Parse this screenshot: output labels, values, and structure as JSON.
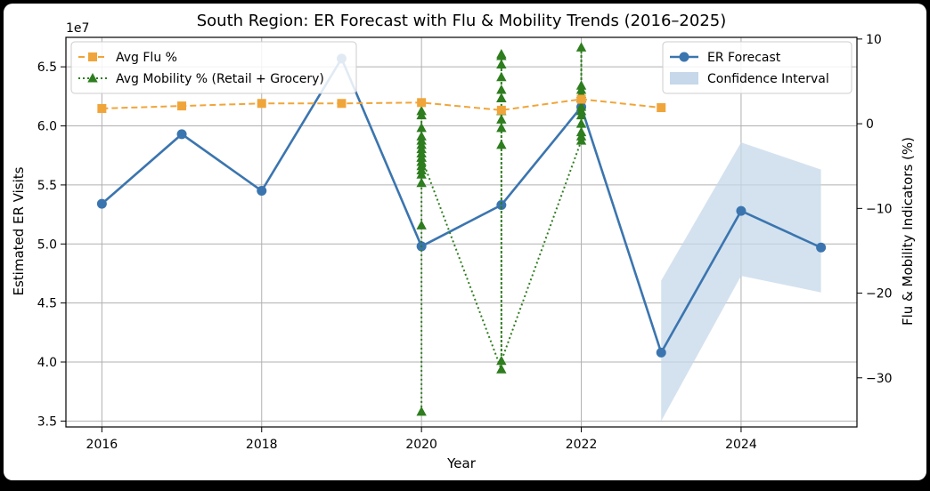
{
  "chart_data": {
    "type": "line",
    "title": "South Region: ER Forecast with Flu & Mobility Trends (2016–2025)",
    "xlabel": "Year",
    "ylabel": "Estimated ER Visits",
    "ylabel_right": "Flu & Mobility Indicators (%)",
    "offset_text": "1e7",
    "xlim": [
      2015.55,
      2025.45
    ],
    "ylim": [
      3.45,
      6.75
    ],
    "ylim_right": [
      -35.8,
      10.2
    ],
    "grid": true,
    "x_ticks": [
      2016,
      2018,
      2020,
      2022,
      2024
    ],
    "x_tick_labels": [
      "2016",
      "2018",
      "2020",
      "2022",
      "2024"
    ],
    "y_ticks": [
      3.5,
      4.0,
      4.5,
      5.0,
      5.5,
      6.0,
      6.5
    ],
    "y_tick_labels": [
      "3.5",
      "4.0",
      "4.5",
      "5.0",
      "5.5",
      "6.0",
      "6.5"
    ],
    "y_right_ticks": [
      10,
      0,
      -10,
      -20,
      -30
    ],
    "y_right_tick_labels": [
      "10",
      "0",
      "−10",
      "−20",
      "−30"
    ],
    "legend_left_placement": "top-left",
    "legend_right_placement": "top-right",
    "colors": {
      "er_forecast": "#3b75af",
      "confidence": "#c6d8ea",
      "flu": "#f0a53a",
      "mobility": "#2e7d1f"
    },
    "series": [
      {
        "name": "ER Forecast",
        "axis": "left",
        "style": "solid-circle",
        "x": [
          2016,
          2017,
          2018,
          2019,
          2020,
          2021,
          2022,
          2023,
          2024,
          2025
        ],
        "values": [
          5.34,
          5.93,
          5.45,
          6.57,
          4.98,
          5.33,
          6.16,
          4.08,
          5.28,
          4.97
        ]
      },
      {
        "name": "Confidence Interval",
        "axis": "left",
        "style": "band",
        "x": [
          2023,
          2024,
          2025
        ],
        "lower": [
          3.5,
          4.73,
          4.59
        ],
        "upper": [
          4.69,
          5.86,
          5.63
        ]
      },
      {
        "name": "Avg Flu %",
        "axis": "right",
        "style": "dashed-square",
        "x": [
          2016,
          2017,
          2018,
          2019,
          2020,
          2021,
          2022,
          2023
        ],
        "values": [
          1.8,
          2.1,
          2.4,
          2.4,
          2.5,
          1.6,
          2.9,
          1.9
        ]
      },
      {
        "name": "Avg Mobility % (Retail + Grocery)",
        "axis": "right",
        "style": "dotted-triangle",
        "x": [
          2020,
          2020,
          2020,
          2020,
          2020,
          2020,
          2020,
          2020,
          2020,
          2020,
          2020,
          2020,
          2020,
          2020,
          2020,
          2020,
          2020,
          2021,
          2021,
          2021,
          2021,
          2021,
          2021,
          2021,
          2021,
          2021,
          2021,
          2021,
          2021,
          2021,
          2022,
          2022,
          2022,
          2022,
          2022,
          2022,
          2022,
          2022,
          2022,
          2022,
          2022,
          2022,
          2022
        ],
        "values": [
          -34,
          -12,
          -7,
          -6,
          -5.5,
          -5,
          -4.5,
          -4,
          -3.5,
          -3,
          -2.5,
          -2,
          -1.5,
          -0.5,
          1,
          1.5,
          -4,
          -29,
          -2.5,
          -0.5,
          0.5,
          1.5,
          3,
          4,
          5.5,
          7,
          8,
          8.2,
          3,
          -28,
          -2,
          -1.5,
          -1,
          0,
          1,
          1.5,
          2,
          3,
          3.5,
          4,
          4.5,
          9,
          3.2
        ]
      }
    ],
    "legend_left": [
      {
        "label": "Avg Flu %",
        "series": "Avg Flu %"
      },
      {
        "label": "Avg Mobility % (Retail + Grocery)",
        "series": "Avg Mobility % (Retail + Grocery)"
      }
    ],
    "legend_right": [
      {
        "label": "ER Forecast",
        "series": "ER Forecast"
      },
      {
        "label": "Confidence Interval",
        "series": "Confidence Interval"
      }
    ]
  }
}
